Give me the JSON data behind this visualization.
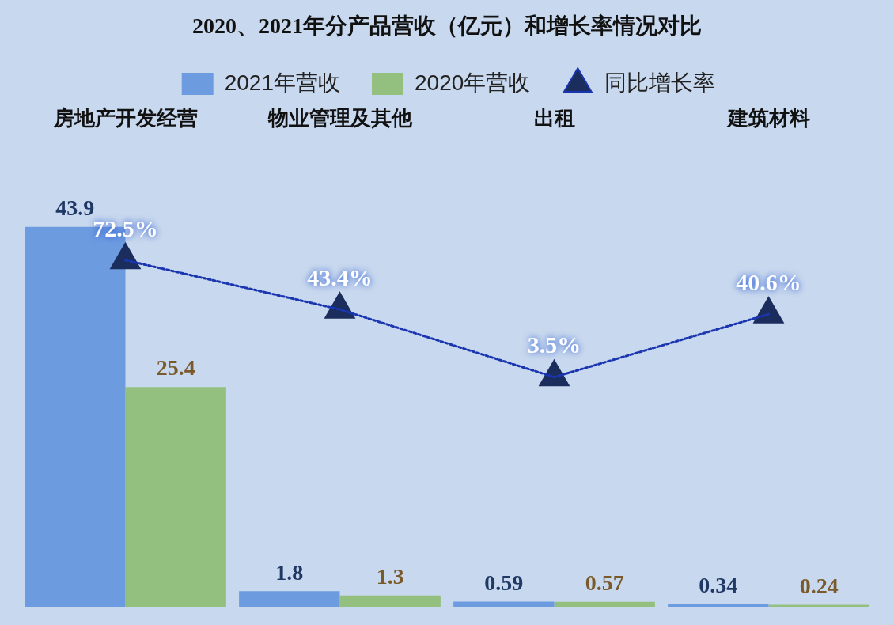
{
  "chart_data": {
    "type": "bar",
    "title": "2020、2021年分产品营收（亿元）和增长率情况对比",
    "categories": [
      "房地产开发经营",
      "物业管理及其他",
      "出租",
      "建筑材料"
    ],
    "legend": "top",
    "series": [
      {
        "name": "2021年营收",
        "color": "#6d9be0",
        "values": [
          43.9,
          1.8,
          0.59,
          0.34
        ],
        "value_labels": [
          "43.9",
          "1.8",
          "0.59",
          "0.34"
        ]
      },
      {
        "name": "2020年营收",
        "color": "#93c07e",
        "values": [
          25.4,
          1.3,
          0.57,
          0.24
        ],
        "value_labels": [
          "25.4",
          "1.3",
          "0.57",
          "0.24"
        ]
      },
      {
        "name": "同比增长率",
        "type": "line",
        "axis": "y2",
        "color": "#1a35b0",
        "marker": "triangle",
        "line_style": "dotted",
        "values": [
          72.5,
          43.4,
          3.5,
          40.6
        ],
        "value_labels": [
          "72.5%",
          "43.4%",
          "3.5%",
          "40.6%"
        ]
      }
    ]
  }
}
